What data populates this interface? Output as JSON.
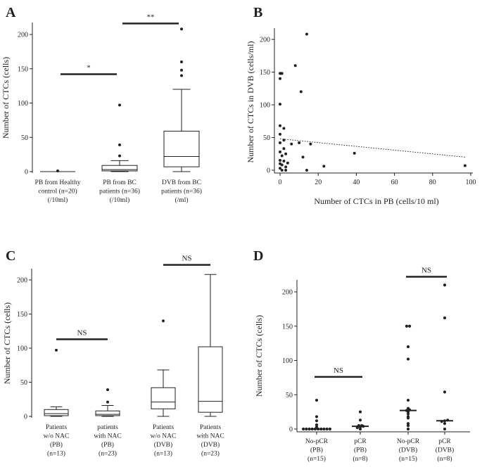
{
  "chart_data": [
    {
      "panel": "A",
      "type": "box",
      "ylabel": "Number of CTCs (cells)",
      "ylim": [
        0,
        210
      ],
      "yticks": [
        0,
        50,
        100,
        150,
        200
      ],
      "categories": [
        [
          "PB from Healthy",
          "control (n=20)",
          "(/10ml)"
        ],
        [
          "PB from BC",
          "patients (n=36)",
          "(/10ml)"
        ],
        [
          "DVB from BC",
          "patients (n=36)",
          "(/ml)"
        ]
      ],
      "boxes": [
        {
          "min": 0,
          "q1": 0,
          "median": 0,
          "q3": 0,
          "max": 0,
          "outliers": [
            1
          ]
        },
        {
          "min": 0,
          "q1": 1,
          "median": 3,
          "q3": 9,
          "max": 16,
          "outliers": [
            23,
            39,
            97
          ]
        },
        {
          "min": 0,
          "q1": 7,
          "median": 22,
          "q3": 59,
          "max": 120,
          "outliers": [
            140,
            148,
            160,
            208
          ]
        }
      ],
      "significance": [
        {
          "label": "*",
          "from": 0,
          "to": 1,
          "y": 142
        },
        {
          "label": "**",
          "from": 1,
          "to": 2,
          "y": 216
        }
      ]
    },
    {
      "panel": "B",
      "type": "scatter",
      "xlabel": "Number of CTCs in PB (cells/10 ml)",
      "ylabel": "Number of CTCs in DVB (cells/ml)",
      "xlim": [
        -2,
        100
      ],
      "ylim": [
        -5,
        215
      ],
      "xticks": [
        0,
        20,
        40,
        60,
        80,
        100
      ],
      "yticks": [
        0,
        50,
        100,
        150,
        200
      ],
      "points": [
        [
          0,
          148
        ],
        [
          0.5,
          148
        ],
        [
          1,
          148
        ],
        [
          0,
          140
        ],
        [
          0,
          101
        ],
        [
          0,
          68
        ],
        [
          0,
          55
        ],
        [
          0,
          42
        ],
        [
          0,
          28
        ],
        [
          0,
          15
        ],
        [
          0,
          10
        ],
        [
          0,
          3
        ],
        [
          1,
          0
        ],
        [
          1,
          8
        ],
        [
          1,
          22
        ],
        [
          2,
          64
        ],
        [
          2,
          46
        ],
        [
          2,
          33
        ],
        [
          2,
          14
        ],
        [
          3,
          5
        ],
        [
          3,
          0
        ],
        [
          3,
          25
        ],
        [
          4,
          11
        ],
        [
          6,
          40
        ],
        [
          8,
          160
        ],
        [
          10,
          42
        ],
        [
          11,
          120
        ],
        [
          12,
          20
        ],
        [
          14,
          208
        ],
        [
          14,
          0
        ],
        [
          16,
          40
        ],
        [
          23,
          6
        ],
        [
          39,
          26
        ],
        [
          97,
          7
        ]
      ],
      "trendline": {
        "style": "dotted",
        "from": [
          0,
          48
        ],
        "to": [
          97,
          20
        ]
      }
    },
    {
      "panel": "C",
      "type": "box",
      "ylabel": "Number of CTCs (cells)",
      "ylim": [
        0,
        210
      ],
      "yticks": [
        0,
        50,
        100,
        150,
        200
      ],
      "categories": [
        [
          "Patients",
          "w/o NAC",
          "(PB)",
          "(n=13)"
        ],
        [
          "patients",
          "with NAC",
          "(PB)",
          "(n=23)"
        ],
        [
          "Patients",
          "w/o NAC",
          "(DVB)",
          "(n=13)"
        ],
        [
          "Patients",
          "with NAC",
          "(DVB)",
          "(n=23)"
        ]
      ],
      "boxes": [
        {
          "min": 0,
          "q1": 1,
          "median": 4,
          "q3": 10,
          "max": 14,
          "outliers": [
            97
          ]
        },
        {
          "min": 0,
          "q1": 1,
          "median": 3,
          "q3": 8,
          "max": 16,
          "outliers": [
            21,
            39
          ]
        },
        {
          "min": 0,
          "q1": 11,
          "median": 21,
          "q3": 42,
          "max": 68,
          "outliers": [
            140
          ]
        },
        {
          "min": 0,
          "q1": 6,
          "median": 22,
          "q3": 102,
          "max": 208,
          "outliers": []
        }
      ],
      "significance": [
        {
          "label": "NS",
          "from": 0,
          "to": 1,
          "y": 113
        },
        {
          "label": "NS",
          "from": 2,
          "to": 3,
          "y": 222
        }
      ]
    },
    {
      "panel": "D",
      "type": "dot",
      "ylabel": "Number of CTCs (cells)",
      "ylim": [
        0,
        215
      ],
      "yticks": [
        0,
        50,
        100,
        150,
        200
      ],
      "categories": [
        [
          "No-pCR",
          "(PB)",
          "(n=15)"
        ],
        [
          "pCR",
          "(PB)",
          "(n=8)"
        ],
        [
          "No-pCR",
          "(DVB)",
          "(n=15)"
        ],
        [
          "pCR",
          "(DVB)",
          "(n=8)"
        ]
      ],
      "groups": [
        {
          "values": [
            0,
            0,
            0,
            0,
            0,
            0,
            0,
            0,
            0,
            0,
            3,
            6,
            12,
            18,
            42
          ],
          "median": 0
        },
        {
          "values": [
            0,
            2,
            3,
            4,
            5,
            5,
            13,
            25
          ],
          "median": 4
        },
        {
          "values": [
            0,
            8,
            16,
            18,
            22,
            25,
            27,
            28,
            30,
            42,
            102,
            120,
            150,
            150,
            5
          ],
          "median": 27
        },
        {
          "values": [
            0,
            8,
            11,
            12,
            13,
            54,
            162,
            210
          ],
          "median": 12
        }
      ],
      "significance": [
        {
          "label": "NS",
          "from": 0,
          "to": 1,
          "y": 76
        },
        {
          "label": "NS",
          "from": 2,
          "to": 3,
          "y": 222
        }
      ]
    }
  ]
}
